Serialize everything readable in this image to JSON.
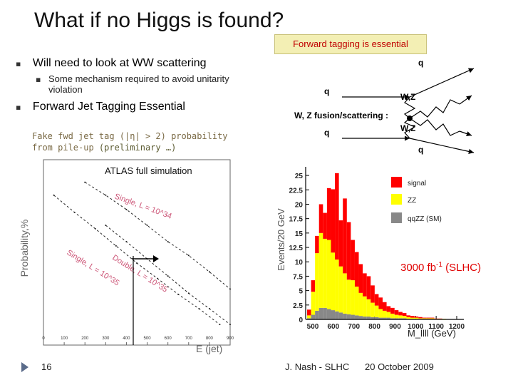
{
  "slide": {
    "title": "What if no Higgs is found?",
    "tag": "Forward tagging is essential",
    "bullets": {
      "b1": "Will need to look at WW scattering",
      "b1_sub_line1": "Some mechanism required to avoid unitarity",
      "b1_sub_line2": "violation",
      "b2": "Forward Jet Tagging Essential"
    },
    "fake_note_line1": "Fake fwd jet tag (|η| > 2) probability",
    "fake_note_line2_a": "from pile-up ",
    "fake_note_line2_b": "(preliminary …)",
    "luminosity_main": "3000 fb",
    "luminosity_sup": "-1",
    "luminosity_tail": " (SLHC)",
    "footer": {
      "page": "16",
      "author": "J. Nash - SLHC",
      "date": "20 October 2009"
    },
    "colors": {
      "tag_bg": "#f3efb4",
      "accent_red": "#e00000",
      "signal": "#ff0000",
      "zz": "#ffff00"
    }
  },
  "feynman": {
    "q_top_right": "q",
    "q_left_top": "q",
    "wz_top": "W,Z",
    "fusion_label": "W, Z fusion/scattering :",
    "q_left_bottom": "q",
    "wz_bottom": "W,Z",
    "q_bottom_right": "q"
  },
  "chart_data": [
    {
      "type": "line",
      "title": "ATLAS full simulation",
      "ylabel": "Probability,%",
      "xlabel": "E (jet)",
      "x_ticks": [
        "0",
        "100",
        "200",
        "300",
        "400",
        "500",
        "600",
        "700",
        "800",
        "900"
      ],
      "xlim": [
        0,
        900
      ],
      "y_scale": "log",
      "series_labels": [
        "Single, L = 10^34",
        "Single, L = 10^35",
        "Double, L = 10^35"
      ],
      "series_values": [
        {
          "x": [
            200,
            300,
            400,
            500,
            600,
            700,
            800,
            900
          ],
          "y": [
            60,
            30,
            14,
            6,
            2.5,
            1.2,
            0.5,
            0.2
          ]
        },
        {
          "x": [
            50,
            150,
            250,
            350,
            450,
            550,
            650,
            750,
            850
          ],
          "y": [
            30,
            12,
            5,
            2,
            0.8,
            0.35,
            0.15,
            0.07,
            0.03
          ]
        },
        {
          "x": [
            300,
            400,
            500,
            600,
            700,
            800,
            900
          ],
          "y": [
            6,
            2.5,
            1.0,
            0.4,
            0.16,
            0.07,
            0.03
          ]
        }
      ],
      "annotation": "arrow at E(jet) ≈ 400"
    },
    {
      "type": "bar",
      "stacked": true,
      "ylabel": "Events/20 GeV",
      "xlabel": "M_llll (GeV)",
      "x_ticks": [
        "500",
        "600",
        "700",
        "800",
        "900",
        "1000",
        "1100",
        "1200"
      ],
      "y_ticks": [
        "0",
        "2.5",
        "5",
        "7.5",
        "10",
        "12.5",
        "15",
        "17.5",
        "20",
        "22.5",
        "25"
      ],
      "ylim": [
        0,
        26
      ],
      "legend": [
        "signal",
        "ZZ",
        "qqZZ (SM)"
      ],
      "legend_position": "top-right",
      "series": [
        {
          "name": "signal",
          "values": [
            1.0,
            2.0,
            3.0,
            5.0,
            4.5,
            9.0,
            11.0,
            15.0,
            8.0,
            13.0,
            10.0,
            7.0,
            6.0,
            5.0,
            4.0,
            4.0,
            3.0,
            2.0,
            2.0,
            1.5,
            1.0,
            1.0,
            0.8,
            0.6,
            0.5,
            0.3,
            0.3,
            0.2,
            0.2,
            0.1,
            0.1,
            0.1,
            0.05,
            0.05,
            0.0,
            0.0,
            0.0,
            0.0
          ]
        },
        {
          "name": "ZZ",
          "values": [
            0.5,
            4.0,
            10.0,
            13.0,
            12.0,
            12.0,
            10.0,
            9.0,
            8.0,
            7.0,
            6.0,
            6.0,
            5.0,
            4.0,
            3.5,
            3.0,
            2.5,
            2.0,
            1.5,
            1.2,
            1.0,
            0.8,
            0.6,
            0.5,
            0.4,
            0.3,
            0.2,
            0.2,
            0.1,
            0.1,
            0.1,
            0.1,
            0.05,
            0.05,
            0.05,
            0.0,
            0.0,
            0.0
          ]
        },
        {
          "name": "qqZZ (SM)",
          "values": [
            0.2,
            0.8,
            1.5,
            2.0,
            2.0,
            1.8,
            1.6,
            1.4,
            1.2,
            1.0,
            0.9,
            0.8,
            0.7,
            0.6,
            0.5,
            0.5,
            0.4,
            0.4,
            0.3,
            0.3,
            0.3,
            0.2,
            0.2,
            0.2,
            0.2,
            0.1,
            0.1,
            0.1,
            0.1,
            0.1,
            0.1,
            0.1,
            0.05,
            0.05,
            0.05,
            0.05,
            0.05,
            0.05
          ]
        }
      ]
    }
  ]
}
